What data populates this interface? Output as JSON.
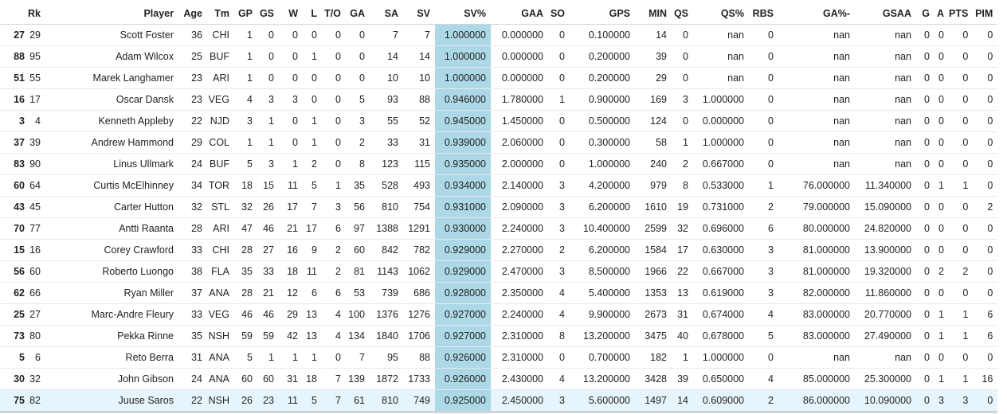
{
  "highlight_color": "#add8e6",
  "hover_row_color": "#e6f5fb",
  "columns": [
    "",
    "Rk",
    "Player",
    "Age",
    "Tm",
    "GP",
    "GS",
    "W",
    "L",
    "T/O",
    "GA",
    "SA",
    "SV",
    "SV%",
    "GAA",
    "SO",
    "GPS",
    "MIN",
    "QS",
    "QS%",
    "RBS",
    "GA%-",
    "GSAA",
    "G",
    "A",
    "PTS",
    "PIM"
  ],
  "rows": [
    [
      "27",
      "29",
      "Scott Foster",
      "36",
      "CHI",
      "1",
      "0",
      "0",
      "0",
      "0",
      "0",
      "7",
      "7",
      "1.000000",
      "0.000000",
      "0",
      "0.100000",
      "14",
      "0",
      "nan",
      "0",
      "nan",
      "nan",
      "0",
      "0",
      "0",
      "0"
    ],
    [
      "88",
      "95",
      "Adam Wilcox",
      "25",
      "BUF",
      "1",
      "0",
      "0",
      "1",
      "0",
      "0",
      "14",
      "14",
      "1.000000",
      "0.000000",
      "0",
      "0.200000",
      "39",
      "0",
      "nan",
      "0",
      "nan",
      "nan",
      "0",
      "0",
      "0",
      "0"
    ],
    [
      "51",
      "55",
      "Marek Langhamer",
      "23",
      "ARI",
      "1",
      "0",
      "0",
      "0",
      "0",
      "0",
      "10",
      "10",
      "1.000000",
      "0.000000",
      "0",
      "0.200000",
      "29",
      "0",
      "nan",
      "0",
      "nan",
      "nan",
      "0",
      "0",
      "0",
      "0"
    ],
    [
      "16",
      "17",
      "Oscar Dansk",
      "23",
      "VEG",
      "4",
      "3",
      "3",
      "0",
      "0",
      "5",
      "93",
      "88",
      "0.946000",
      "1.780000",
      "1",
      "0.900000",
      "169",
      "3",
      "1.000000",
      "0",
      "nan",
      "nan",
      "0",
      "0",
      "0",
      "0"
    ],
    [
      "3",
      "4",
      "Kenneth Appleby",
      "22",
      "NJD",
      "3",
      "1",
      "0",
      "1",
      "0",
      "3",
      "55",
      "52",
      "0.945000",
      "1.450000",
      "0",
      "0.500000",
      "124",
      "0",
      "0.000000",
      "0",
      "nan",
      "nan",
      "0",
      "0",
      "0",
      "0"
    ],
    [
      "37",
      "39",
      "Andrew Hammond",
      "29",
      "COL",
      "1",
      "1",
      "0",
      "1",
      "0",
      "2",
      "33",
      "31",
      "0.939000",
      "2.060000",
      "0",
      "0.300000",
      "58",
      "1",
      "1.000000",
      "0",
      "nan",
      "nan",
      "0",
      "0",
      "0",
      "0"
    ],
    [
      "83",
      "90",
      "Linus Ullmark",
      "24",
      "BUF",
      "5",
      "3",
      "1",
      "2",
      "0",
      "8",
      "123",
      "115",
      "0.935000",
      "2.000000",
      "0",
      "1.000000",
      "240",
      "2",
      "0.667000",
      "0",
      "nan",
      "nan",
      "0",
      "0",
      "0",
      "0"
    ],
    [
      "60",
      "64",
      "Curtis McElhinney",
      "34",
      "TOR",
      "18",
      "15",
      "11",
      "5",
      "1",
      "35",
      "528",
      "493",
      "0.934000",
      "2.140000",
      "3",
      "4.200000",
      "979",
      "8",
      "0.533000",
      "1",
      "76.000000",
      "11.340000",
      "0",
      "1",
      "1",
      "0"
    ],
    [
      "43",
      "45",
      "Carter Hutton",
      "32",
      "STL",
      "32",
      "26",
      "17",
      "7",
      "3",
      "56",
      "810",
      "754",
      "0.931000",
      "2.090000",
      "3",
      "6.200000",
      "1610",
      "19",
      "0.731000",
      "2",
      "79.000000",
      "15.090000",
      "0",
      "0",
      "0",
      "2"
    ],
    [
      "70",
      "77",
      "Antti Raanta",
      "28",
      "ARI",
      "47",
      "46",
      "21",
      "17",
      "6",
      "97",
      "1388",
      "1291",
      "0.930000",
      "2.240000",
      "3",
      "10.400000",
      "2599",
      "32",
      "0.696000",
      "6",
      "80.000000",
      "24.820000",
      "0",
      "0",
      "0",
      "0"
    ],
    [
      "15",
      "16",
      "Corey Crawford",
      "33",
      "CHI",
      "28",
      "27",
      "16",
      "9",
      "2",
      "60",
      "842",
      "782",
      "0.929000",
      "2.270000",
      "2",
      "6.200000",
      "1584",
      "17",
      "0.630000",
      "3",
      "81.000000",
      "13.900000",
      "0",
      "0",
      "0",
      "0"
    ],
    [
      "56",
      "60",
      "Roberto Luongo",
      "38",
      "FLA",
      "35",
      "33",
      "18",
      "11",
      "2",
      "81",
      "1143",
      "1062",
      "0.929000",
      "2.470000",
      "3",
      "8.500000",
      "1966",
      "22",
      "0.667000",
      "3",
      "81.000000",
      "19.320000",
      "0",
      "2",
      "2",
      "0"
    ],
    [
      "62",
      "66",
      "Ryan Miller",
      "37",
      "ANA",
      "28",
      "21",
      "12",
      "6",
      "6",
      "53",
      "739",
      "686",
      "0.928000",
      "2.350000",
      "4",
      "5.400000",
      "1353",
      "13",
      "0.619000",
      "3",
      "82.000000",
      "11.860000",
      "0",
      "0",
      "0",
      "0"
    ],
    [
      "25",
      "27",
      "Marc-Andre Fleury",
      "33",
      "VEG",
      "46",
      "46",
      "29",
      "13",
      "4",
      "100",
      "1376",
      "1276",
      "0.927000",
      "2.240000",
      "4",
      "9.900000",
      "2673",
      "31",
      "0.674000",
      "4",
      "83.000000",
      "20.770000",
      "0",
      "1",
      "1",
      "6"
    ],
    [
      "73",
      "80",
      "Pekka Rinne",
      "35",
      "NSH",
      "59",
      "59",
      "42",
      "13",
      "4",
      "134",
      "1840",
      "1706",
      "0.927000",
      "2.310000",
      "8",
      "13.200000",
      "3475",
      "40",
      "0.678000",
      "5",
      "83.000000",
      "27.490000",
      "0",
      "1",
      "1",
      "6"
    ],
    [
      "5",
      "6",
      "Reto Berra",
      "31",
      "ANA",
      "5",
      "1",
      "1",
      "1",
      "0",
      "7",
      "95",
      "88",
      "0.926000",
      "2.310000",
      "0",
      "0.700000",
      "182",
      "1",
      "1.000000",
      "0",
      "nan",
      "nan",
      "0",
      "0",
      "0",
      "0"
    ],
    [
      "30",
      "32",
      "John Gibson",
      "24",
      "ANA",
      "60",
      "60",
      "31",
      "18",
      "7",
      "139",
      "1872",
      "1733",
      "0.926000",
      "2.430000",
      "4",
      "13.200000",
      "3428",
      "39",
      "0.650000",
      "4",
      "85.000000",
      "25.300000",
      "0",
      "1",
      "1",
      "16"
    ],
    [
      "75",
      "82",
      "Juuse Saros",
      "22",
      "NSH",
      "26",
      "23",
      "11",
      "5",
      "7",
      "61",
      "810",
      "749",
      "0.925000",
      "2.450000",
      "3",
      "5.600000",
      "1497",
      "14",
      "0.609000",
      "2",
      "86.000000",
      "10.090000",
      "0",
      "3",
      "3",
      "0"
    ]
  ]
}
